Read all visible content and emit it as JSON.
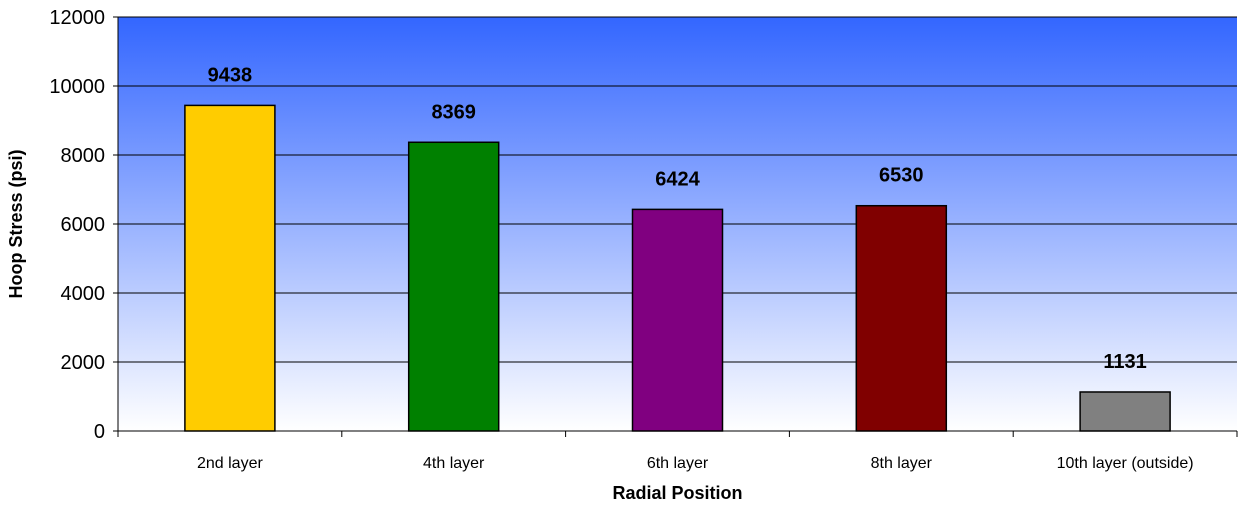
{
  "chart_data": {
    "type": "bar",
    "title": "",
    "xlabel": "Radial Position",
    "ylabel": "Hoop Stress (psi)",
    "categories": [
      "2nd layer",
      "4th layer",
      "6th layer",
      "8th layer",
      "10th layer (outside)"
    ],
    "values": [
      9438,
      8369,
      6424,
      6530,
      1131
    ],
    "bar_colors": [
      "#FFCC00",
      "#008000",
      "#800080",
      "#800000",
      "#808080"
    ],
    "ylim": [
      0,
      12000
    ],
    "yticks": [
      0,
      2000,
      4000,
      6000,
      8000,
      10000,
      12000
    ],
    "grid": true,
    "legend": "none",
    "plot_background": {
      "top_color": "#3366FF",
      "bottom_color": "#FFFFFF"
    }
  }
}
